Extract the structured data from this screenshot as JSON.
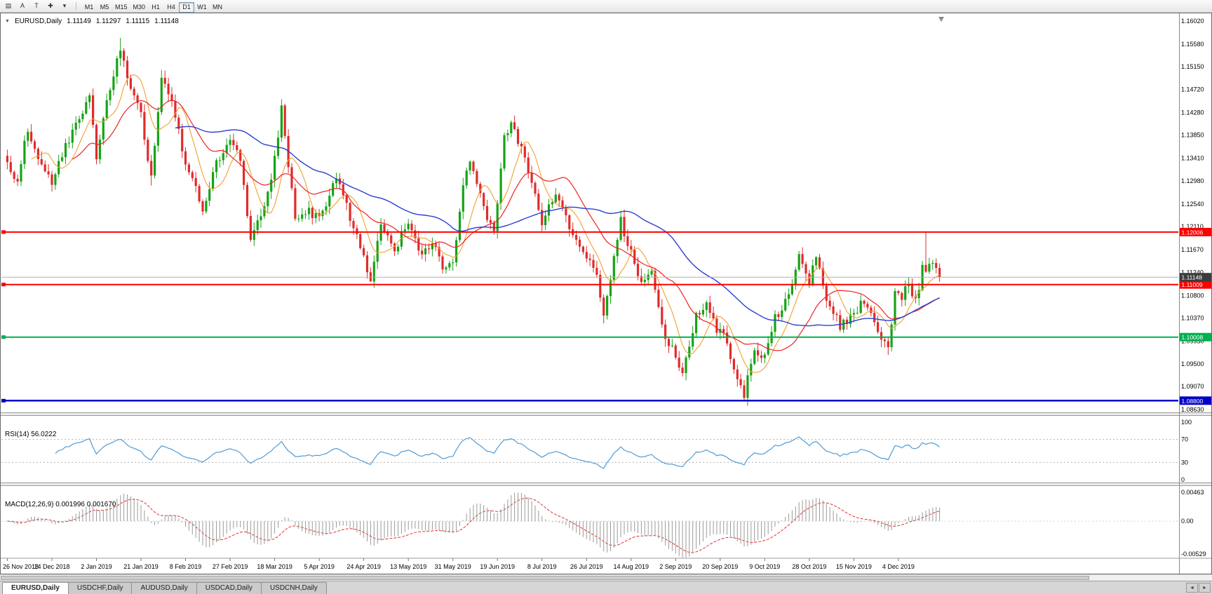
{
  "toolbar": {
    "icons": [
      {
        "name": "chart-list",
        "glyph": "▤"
      },
      {
        "name": "text-annotation-a",
        "glyph": "A"
      },
      {
        "name": "text-annotation-t",
        "glyph": "T"
      },
      {
        "name": "crosshair",
        "glyph": "✚"
      },
      {
        "name": "cursor-dropdown",
        "glyph": "▾"
      }
    ],
    "timeframes": [
      "M1",
      "M5",
      "M15",
      "M30",
      "H1",
      "H4",
      "D1",
      "W1",
      "MN"
    ],
    "selected_timeframe": "D1"
  },
  "chart": {
    "header": {
      "arrow": "▼",
      "symbol": "EURUSD,Daily",
      "open": "1.11149",
      "high": "1.11297",
      "low": "1.11115",
      "close": "1.11148"
    }
  },
  "rsi": {
    "label": "RSI(14) 56.0222",
    "axis_labels": [
      "100",
      "70",
      "30",
      "0"
    ],
    "level_lines": [
      70,
      30
    ],
    "line_color": "#4f9bd5"
  },
  "macd": {
    "label": "MACD(12,26,9) 0.001996 0.001670",
    "axis_labels": [
      "0.00463",
      "0.00",
      "-0.00529"
    ],
    "histogram_color": "#9a9a9a",
    "signal_color": "#e03030"
  },
  "chart_data": {
    "type": "candlestick",
    "symbol": "EURUSD",
    "period": "Daily",
    "ohlc_quote": {
      "open": 1.11149,
      "high": 1.11297,
      "low": 1.11115,
      "close": 1.11148
    },
    "num_candles": 273,
    "label_step": 13,
    "date_labels": [
      "26 Nov 2018",
      "14 Dec 2018",
      "2 Jan 2019",
      "21 Jan 2019",
      "8 Feb 2019",
      "27 Feb 2019",
      "18 Mar 2019",
      "5 Apr 2019",
      "24 Apr 2019",
      "13 May 2019",
      "31 May 2019",
      "19 Jun 2019",
      "8 Jul 2019",
      "26 Jul 2019",
      "14 Aug 2019",
      "2 Sep 2019",
      "20 Sep 2019",
      "9 Oct 2019",
      "28 Oct 2019",
      "15 Nov 2019",
      "4 Dec 2019"
    ],
    "price_axis_labels": [
      "1.16020",
      "1.15580",
      "1.15150",
      "1.14720",
      "1.14280",
      "1.13850",
      "1.13410",
      "1.12980",
      "1.12540",
      "1.12110",
      "1.11670",
      "1.11240",
      "1.10800",
      "1.10370",
      "1.09930",
      "1.09500",
      "1.09070",
      "1.08630"
    ],
    "price_scale": {
      "max": 1.1602,
      "min": 1.0863
    },
    "close_anchors": [
      [
        0,
        1.133
      ],
      [
        3,
        1.1295
      ],
      [
        6,
        1.14
      ],
      [
        9,
        1.133
      ],
      [
        13,
        1.13
      ],
      [
        17,
        1.136
      ],
      [
        21,
        1.142
      ],
      [
        24,
        1.146
      ],
      [
        26,
        1.134
      ],
      [
        29,
        1.145
      ],
      [
        33,
        1.155
      ],
      [
        36,
        1.148
      ],
      [
        39,
        1.142
      ],
      [
        42,
        1.13
      ],
      [
        45,
        1.149
      ],
      [
        48,
        1.145
      ],
      [
        52,
        1.133
      ],
      [
        57,
        1.1245
      ],
      [
        61,
        1.133
      ],
      [
        65,
        1.138
      ],
      [
        68,
        1.133
      ],
      [
        71,
        1.1185
      ],
      [
        75,
        1.125
      ],
      [
        78,
        1.134
      ],
      [
        80,
        1.144
      ],
      [
        84,
        1.122
      ],
      [
        88,
        1.124
      ],
      [
        91,
        1.1225
      ],
      [
        96,
        1.131
      ],
      [
        100,
        1.123
      ],
      [
        104,
        1.115
      ],
      [
        106,
        1.1115
      ],
      [
        109,
        1.122
      ],
      [
        113,
        1.117
      ],
      [
        117,
        1.122
      ],
      [
        121,
        1.116
      ],
      [
        124,
        1.118
      ],
      [
        128,
        1.1125
      ],
      [
        130,
        1.114
      ],
      [
        133,
        1.129
      ],
      [
        135,
        1.134
      ],
      [
        139,
        1.1245
      ],
      [
        142,
        1.12
      ],
      [
        145,
        1.138
      ],
      [
        147,
        1.14
      ],
      [
        150,
        1.136
      ],
      [
        152,
        1.132
      ],
      [
        156,
        1.122
      ],
      [
        160,
        1.127
      ],
      [
        164,
        1.1215
      ],
      [
        169,
        1.115
      ],
      [
        172,
        1.1125
      ],
      [
        174,
        1.1045
      ],
      [
        176,
        1.111
      ],
      [
        179,
        1.122
      ],
      [
        182,
        1.116
      ],
      [
        185,
        1.11
      ],
      [
        188,
        1.1135
      ],
      [
        192,
        1.0995
      ],
      [
        195,
        1.097
      ],
      [
        197,
        1.0935
      ],
      [
        201,
        1.104
      ],
      [
        204,
        1.107
      ],
      [
        207,
        1.101
      ],
      [
        208,
        1.102
      ],
      [
        212,
        1.0945
      ],
      [
        215,
        1.0895
      ],
      [
        218,
        1.098
      ],
      [
        221,
        1.0965
      ],
      [
        224,
        1.104
      ],
      [
        228,
        1.1075
      ],
      [
        231,
        1.115
      ],
      [
        234,
        1.11
      ],
      [
        236,
        1.1155
      ],
      [
        239,
        1.1075
      ],
      [
        243,
        1.102
      ],
      [
        247,
        1.105
      ],
      [
        250,
        1.107
      ],
      [
        254,
        1.1015
      ],
      [
        257,
        1.0985
      ],
      [
        259,
        1.108
      ],
      [
        261,
        1.108
      ],
      [
        263,
        1.1105
      ],
      [
        265,
        1.107
      ],
      [
        267,
        1.113
      ],
      [
        268,
        1.1125
      ],
      [
        270,
        1.1143
      ],
      [
        272,
        1.11148
      ]
    ],
    "wick_overrides": {
      "33": {
        "h": 1.157
      },
      "42": {
        "l": 1.1289
      },
      "106": {
        "l": 1.111
      },
      "174": {
        "l": 1.1027
      },
      "197": {
        "l": 1.0926
      },
      "215": {
        "l": 1.0879
      },
      "268": {
        "h": 1.12
      }
    },
    "last_close": 1.11148,
    "up_color": "#16a316",
    "down_color": "#e02b2b",
    "ma_colors": {
      "fast": "#f0a030",
      "mid": "#ee2222",
      "slow": "#2b3fd0"
    },
    "levels": [
      {
        "price": 1.12006,
        "label": "1.12006",
        "color": "#ff0000",
        "width": 2
      },
      {
        "price": 1.11009,
        "label": "1.11009",
        "color": "#ff0000",
        "width": 2
      },
      {
        "price": 1.10008,
        "label": "1.10008",
        "color": "#00b050",
        "width": 2
      },
      {
        "price": 1.088,
        "label": "1.08800",
        "color": "#0000c8",
        "width": 2.5
      }
    ],
    "current_price": {
      "value": 1.11148,
      "label": "1.11148",
      "line_color": "#b0b0b0",
      "tag_color": "#3c3c3c"
    }
  },
  "tabs": {
    "items": [
      {
        "label": "EURUSD,Daily",
        "active": true
      },
      {
        "label": "USDCHF,Daily",
        "active": false
      },
      {
        "label": "AUDUSD,Daily",
        "active": false
      },
      {
        "label": "USDCAD,Daily",
        "active": false
      },
      {
        "label": "USDCNH,Daily",
        "active": false
      }
    ],
    "scroll_left": "◄",
    "scroll_right": "►"
  }
}
